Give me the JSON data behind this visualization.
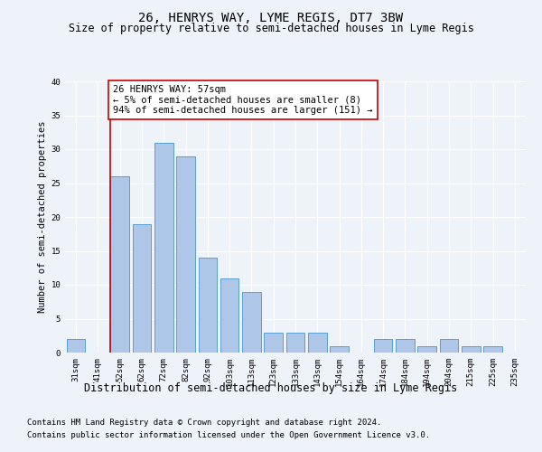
{
  "title": "26, HENRYS WAY, LYME REGIS, DT7 3BW",
  "subtitle": "Size of property relative to semi-detached houses in Lyme Regis",
  "xlabel_bottom": "Distribution of semi-detached houses by size in Lyme Regis",
  "ylabel": "Number of semi-detached properties",
  "categories": [
    "31sqm",
    "41sqm",
    "52sqm",
    "62sqm",
    "72sqm",
    "82sqm",
    "92sqm",
    "103sqm",
    "113sqm",
    "123sqm",
    "133sqm",
    "143sqm",
    "154sqm",
    "164sqm",
    "174sqm",
    "184sqm",
    "194sqm",
    "204sqm",
    "215sqm",
    "225sqm",
    "235sqm"
  ],
  "values": [
    2,
    0,
    26,
    19,
    31,
    29,
    14,
    11,
    9,
    3,
    3,
    3,
    1,
    0,
    2,
    2,
    1,
    2,
    1,
    1,
    0
  ],
  "bar_color": "#aec6e8",
  "bar_edge_color": "#5a9fd4",
  "highlight_bar_index": 2,
  "annotation_text": "26 HENRYS WAY: 57sqm\n← 5% of semi-detached houses are smaller (8)\n94% of semi-detached houses are larger (151) →",
  "annotation_box_color": "#ffffff",
  "annotation_box_edge": "#cc0000",
  "vline_color": "#cc0000",
  "ylim": [
    0,
    40
  ],
  "yticks": [
    0,
    5,
    10,
    15,
    20,
    25,
    30,
    35,
    40
  ],
  "footer_line1": "Contains HM Land Registry data © Crown copyright and database right 2024.",
  "footer_line2": "Contains public sector information licensed under the Open Government Licence v3.0.",
  "background_color": "#eef2f9",
  "grid_color": "#ffffff",
  "title_fontsize": 10,
  "subtitle_fontsize": 8.5,
  "ylabel_fontsize": 7.5,
  "tick_fontsize": 6.5,
  "annotation_fontsize": 7.5,
  "footer_fontsize": 6.5
}
